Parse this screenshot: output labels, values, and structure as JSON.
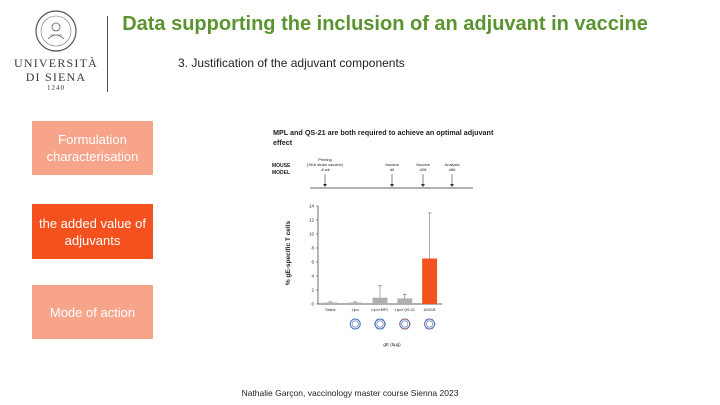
{
  "header": {
    "university_line1": "UNIVERSITÀ",
    "university_line2": "DI SIENA",
    "university_year": "1240",
    "title": "Data supporting the inclusion of an adjuvant in vaccine",
    "subtitle": "3. Justification of the adjuvant components"
  },
  "menu": {
    "items": [
      {
        "label": "Formulation characterisation",
        "active": false
      },
      {
        "label": "the added value of adjuvants",
        "active": true
      },
      {
        "label": "Mode of action",
        "active": false
      }
    ]
  },
  "figure": {
    "heading": "MPL and QS-21 are both required to achieve an optimal adjuvant effect",
    "model_label_1": "MOUSE",
    "model_label_2": "MODEL",
    "timeline": [
      {
        "label1": "Priming",
        "label2": "(SKA strain vaccine)",
        "label3": "-8 wk"
      },
      {
        "label1": "Vaccine",
        "label2": "d0",
        "label3": ""
      },
      {
        "label1": "Vaccine",
        "label2": "d28",
        "label3": ""
      },
      {
        "label1": "Analysis",
        "label2": "d56",
        "label3": ""
      }
    ],
    "xaxis_caption": "gE (5µg)"
  },
  "chart_data": {
    "type": "bar",
    "categories": [
      "Saline",
      "Lipo",
      "Lipo+MPL",
      "Lipo+QS-21",
      "AS01B"
    ],
    "values": [
      0.2,
      0.2,
      0.9,
      0.8,
      6.5
    ],
    "errors": [
      0.1,
      0.1,
      1.7,
      0.6,
      6.5
    ],
    "ylabel": "% gE-specific T cells",
    "ylim": [
      0,
      14
    ],
    "yticks": [
      0,
      2,
      4,
      6,
      8,
      10,
      12,
      14
    ],
    "colors": [
      "#b0b0b0",
      "#b0b0b0",
      "#b0b0b0",
      "#b0b0b0",
      "#f4511e"
    ]
  },
  "footer": {
    "text": "Nathalie Garçon, vaccinology master course Sienna 2023"
  }
}
